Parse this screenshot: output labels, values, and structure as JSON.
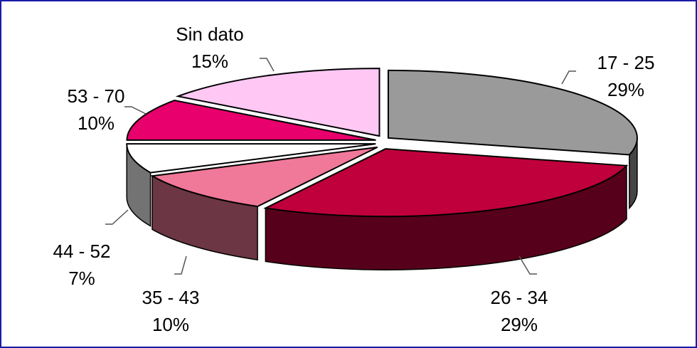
{
  "chart_data": {
    "type": "pie",
    "categories": [
      "17 - 25",
      "26 - 34",
      "35 - 43",
      "44 - 52",
      "53 - 70",
      "Sin dato"
    ],
    "values": [
      29,
      29,
      10,
      7,
      10,
      15
    ],
    "value_labels": [
      "29%",
      "29%",
      "10%",
      "7%",
      "10%",
      "15%"
    ],
    "colors": [
      "#9a9a9a",
      "#c0003c",
      "#f07898",
      "#ffffff",
      "#e8006c",
      "#ffc8f4"
    ]
  }
}
